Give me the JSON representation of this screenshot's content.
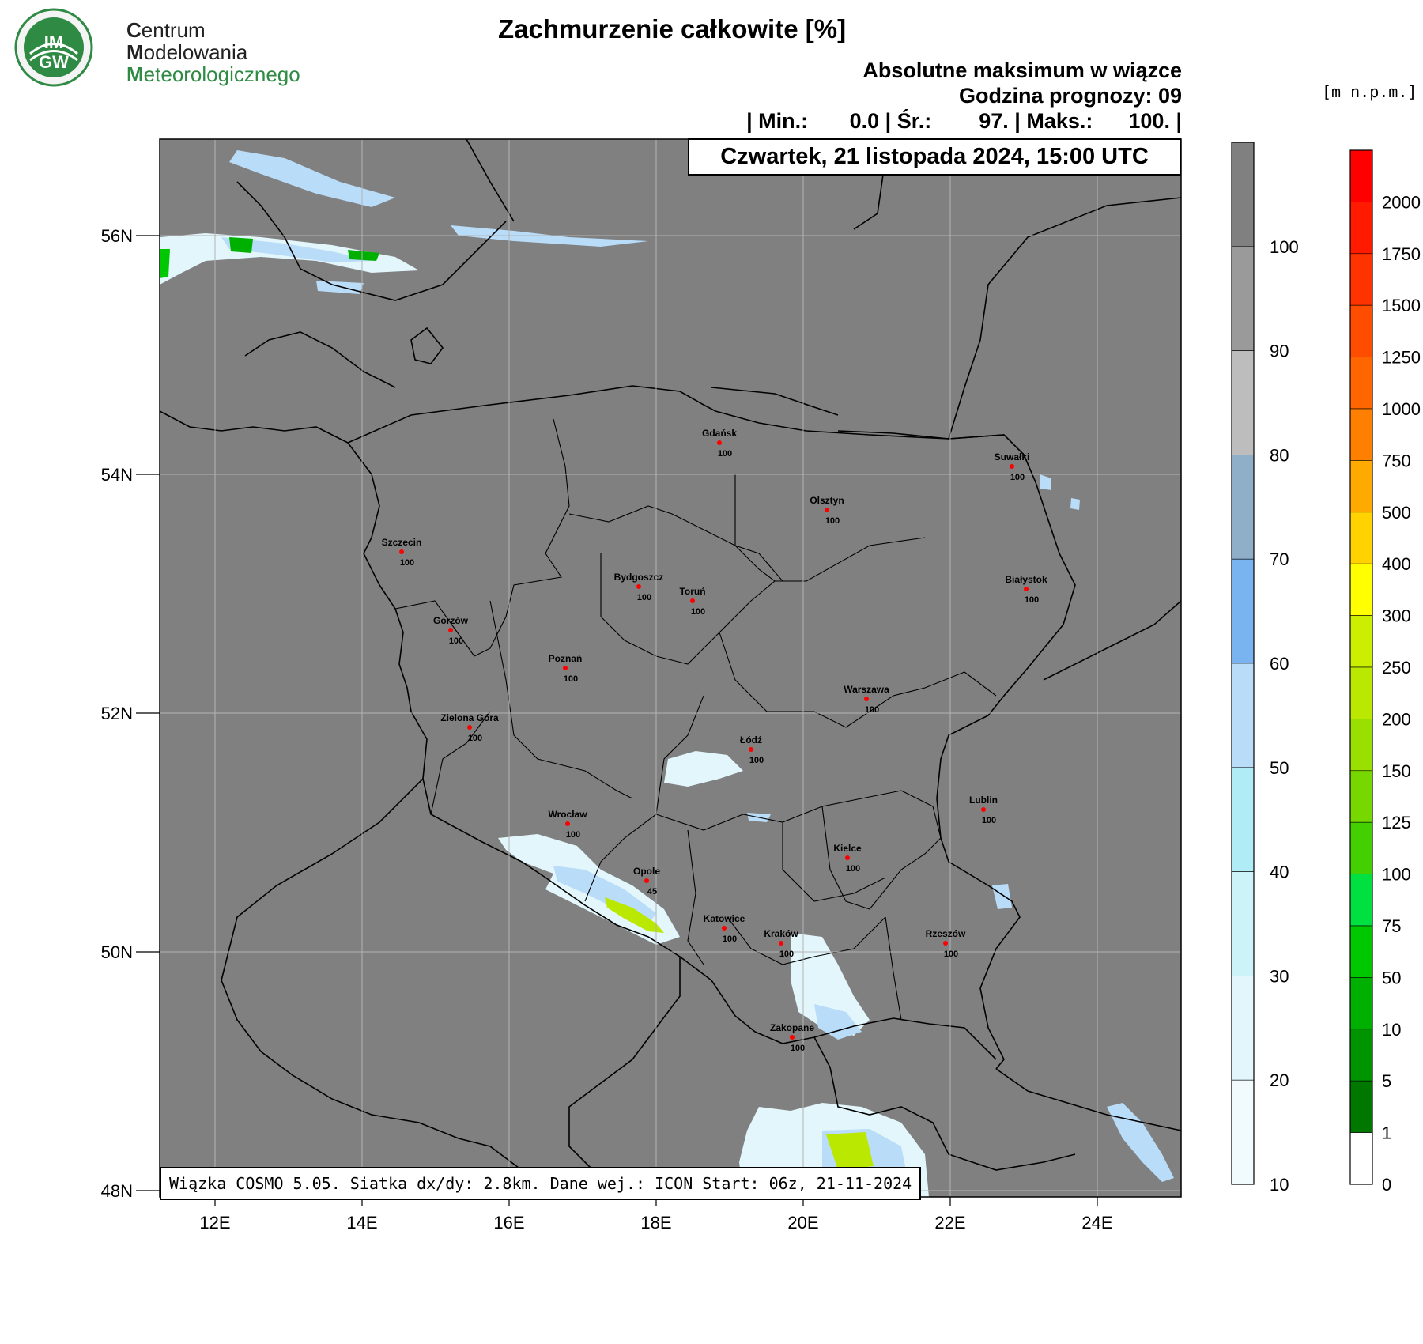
{
  "logo": {
    "badge_text_top": "IM",
    "badge_text_bottom": "GW",
    "line1_initial": "C",
    "line1_rest": "entrum",
    "line2_initial": "M",
    "line2_rest": "odelowania",
    "line3_initial": "M",
    "line3_rest": "eteorologicznego"
  },
  "title": "Zachmurzenie całkowite [%]",
  "header": {
    "line1": "Absolutne maksimum w wiązce",
    "line2": "Godzina prognozy: 09",
    "line3": "| Min.:       0.0 | Śr.:        97. | Maks.:      100. |"
  },
  "datetime": "Czwartek, 21 listopada 2024, 15:00 UTC",
  "terrain_unit": "[m n.p.m.]",
  "footer": "Wiązka COSMO 5.05. Siatka dx/dy: 2.8km. Dane wej.: ICON Start: 06z, 21-11-2024",
  "axes": {
    "lon_labels": [
      "12E",
      "14E",
      "16E",
      "18E",
      "20E",
      "22E",
      "24E"
    ],
    "lat_labels": [
      "56N",
      "54N",
      "52N",
      "50N",
      "48N"
    ]
  },
  "cloud_scale": {
    "labels": [
      "100",
      "90",
      "80",
      "70",
      "60",
      "50",
      "40",
      "30",
      "20",
      "10"
    ],
    "colors": [
      "#808080",
      "#9a9a9a",
      "#bdbdbd",
      "#8fafc8",
      "#79b4f0",
      "#b9dcf8",
      "#b0ecf5",
      "#ccf4f8",
      "#e2f6fb",
      "#f1fbfe"
    ]
  },
  "terrain_scale": {
    "labels": [
      "2000",
      "1750",
      "1500",
      "1250",
      "1000",
      "750",
      "500",
      "400",
      "300",
      "250",
      "200",
      "150",
      "125",
      "100",
      "75",
      "50",
      "10",
      "5",
      "1",
      "0"
    ],
    "colors": [
      "#ff0000",
      "#ff1a00",
      "#ff3300",
      "#ff4d00",
      "#ff6600",
      "#ff8000",
      "#ffaa00",
      "#ffd200",
      "#ffff00",
      "#ccee00",
      "#bbe800",
      "#99e000",
      "#77d800",
      "#44d000",
      "#00e040",
      "#00c800",
      "#00b000",
      "#009400",
      "#007800",
      "#ffffff"
    ]
  },
  "cities": [
    {
      "name": "Gdańsk",
      "value": "100"
    },
    {
      "name": "Suwałki",
      "value": "100"
    },
    {
      "name": "Olsztyn",
      "value": "100"
    },
    {
      "name": "Szczecin",
      "value": "100"
    },
    {
      "name": "Białystok",
      "value": "100"
    },
    {
      "name": "Bydgoszcz",
      "value": "100"
    },
    {
      "name": "Toruń",
      "value": "100"
    },
    {
      "name": "Gorzów",
      "value": "100"
    },
    {
      "name": "Poznań",
      "value": "100"
    },
    {
      "name": "Warszawa",
      "value": "100"
    },
    {
      "name": "Zielona Góra",
      "value": "100"
    },
    {
      "name": "Łódź",
      "value": "100"
    },
    {
      "name": "Wrocław",
      "value": "100"
    },
    {
      "name": "Lublin",
      "value": "100"
    },
    {
      "name": "Kielce",
      "value": "100"
    },
    {
      "name": "Opole",
      "value": "45"
    },
    {
      "name": "Katowice",
      "value": "100"
    },
    {
      "name": "Kraków",
      "value": "100"
    },
    {
      "name": "Rzeszów",
      "value": "100"
    },
    {
      "name": "Zakopane",
      "value": "100"
    }
  ]
}
